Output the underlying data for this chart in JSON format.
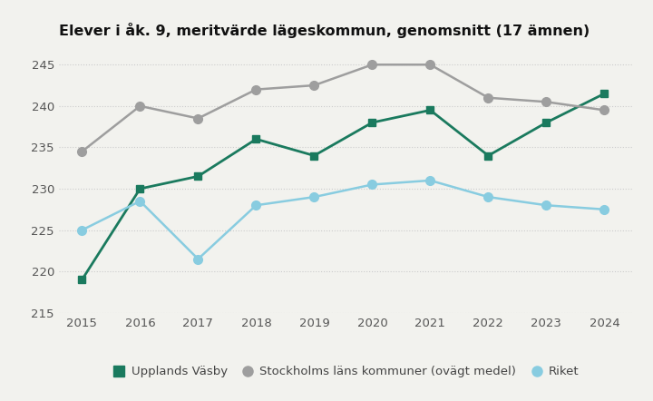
{
  "title": "Elever i åk. 9, meritvärde lägeskommun, genomsnitt (17 ämnen)",
  "years": [
    2015,
    2016,
    2017,
    2018,
    2019,
    2020,
    2021,
    2022,
    2023,
    2024
  ],
  "upplands_vasby": [
    219,
    230,
    231.5,
    236,
    234,
    238,
    239.5,
    234,
    238,
    241.5
  ],
  "stockholms_lan": [
    234.5,
    240,
    238.5,
    242,
    242.5,
    245,
    245,
    241,
    240.5,
    239.5
  ],
  "riket": [
    225,
    228.5,
    221.5,
    228,
    229,
    230.5,
    231,
    229,
    228,
    227.5
  ],
  "series_colors": [
    "#1a7a5e",
    "#9e9e9e",
    "#88cce0"
  ],
  "series_labels": [
    "Upplands Väsby",
    "Stockholms läns kommuner (ovägt medel)",
    "Riket"
  ],
  "marker_styles": [
    "s",
    "o",
    "o"
  ],
  "ylim": [
    215,
    247
  ],
  "yticks": [
    215,
    220,
    225,
    230,
    235,
    240,
    245
  ],
  "background_color": "#f2f2ee",
  "grid_color": "#cccccc",
  "title_fontsize": 11.5,
  "tick_fontsize": 9.5,
  "legend_fontsize": 9.5
}
